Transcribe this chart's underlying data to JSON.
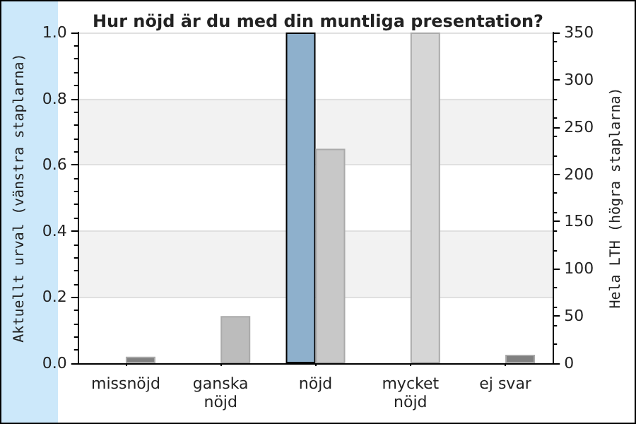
{
  "chart_data": {
    "type": "bar",
    "title": "Hur nöjd är du med din muntliga presentation?",
    "categories": [
      "missnöjd",
      "ganska\nnöjd",
      "nöjd",
      "mycket\nnöjd",
      "ej svar"
    ],
    "ylabel": "Aktuellt urval (vänstra staplarna)",
    "y2label": "Hela LTH (högra staplarna)",
    "series": [
      {
        "color": "#8eb0cc",
        "values": [
          0,
          0,
          1,
          0,
          0
        ]
      },
      {
        "axis": "y2",
        "colors": [
          "#808080",
          "#bcbcbc",
          "#c8c8c8",
          "#d6d6d6",
          "#808080"
        ],
        "values": [
          7,
          50,
          227,
          350,
          9
        ]
      }
    ],
    "ylim": [
      0,
      1
    ],
    "yticks": [
      {
        "value": 0,
        "label": "0.0"
      },
      0.2,
      0.4,
      0.6,
      0.8,
      {
        "value": 1,
        "label": "1.0"
      }
    ],
    "y2lim": [
      0,
      350
    ],
    "y2ticks": [
      0,
      50,
      100,
      150,
      200,
      250,
      300,
      350
    ],
    "grid": "y"
  }
}
